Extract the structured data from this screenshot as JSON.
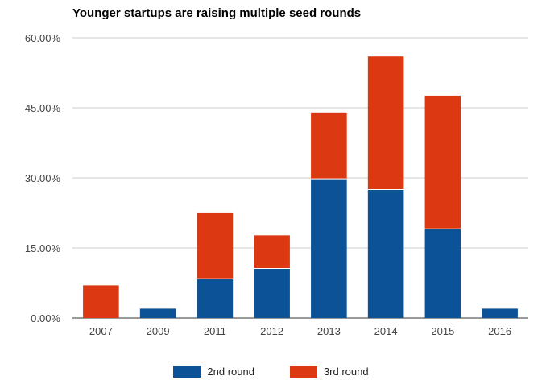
{
  "chart_data": {
    "type": "bar",
    "stacked": true,
    "title": "Younger startups are raising multiple seed rounds",
    "xlabel": "",
    "ylabel": "",
    "categories": [
      "2007",
      "2009",
      "2011",
      "2012",
      "2013",
      "2014",
      "2015",
      "2016"
    ],
    "series": [
      {
        "name": "2nd round",
        "color": "#0b5296",
        "values": [
          0.0,
          2.0,
          8.4,
          10.6,
          29.8,
          27.5,
          19.1,
          2.0
        ]
      },
      {
        "name": "3rd round",
        "color": "#dc3912",
        "values": [
          7.0,
          0.0,
          14.2,
          7.1,
          14.2,
          28.5,
          28.5,
          0.0
        ]
      }
    ],
    "ylim": [
      0,
      60
    ],
    "yticks": [
      "0.00%",
      "15.00%",
      "30.00%",
      "45.00%",
      "60.00%"
    ],
    "grid": true,
    "legend_position": "bottom"
  }
}
